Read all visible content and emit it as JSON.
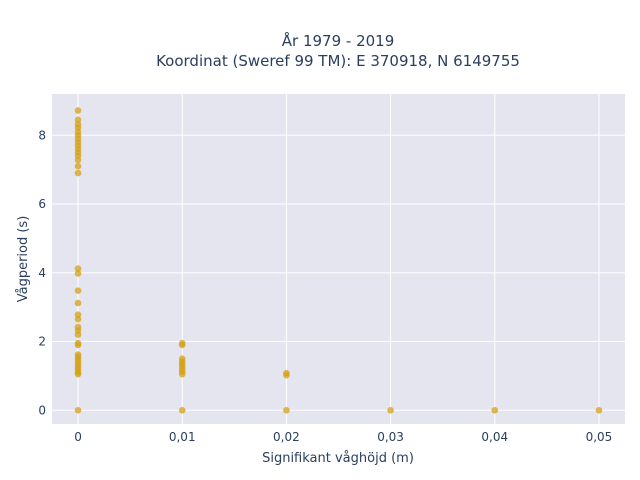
{
  "chart_data": {
    "type": "scatter",
    "title_line1": "År 1979 - 2019",
    "title_line2": "Koordinat (Sweref 99 TM): E 370918, N 6149755",
    "xlabel": "Signifikant våghöjd (m)",
    "ylabel": "Vågperiod (s)",
    "xlim": [
      -0.0025,
      0.0525
    ],
    "ylim": [
      -0.4,
      9.2
    ],
    "grid": true,
    "marker_color": "#d4a017",
    "background_color": "#e5e5f0",
    "x_ticks": [
      {
        "value": 0,
        "label": "0"
      },
      {
        "value": 0.01,
        "label": "0,01"
      },
      {
        "value": 0.02,
        "label": "0,02"
      },
      {
        "value": 0.03,
        "label": "0,03"
      },
      {
        "value": 0.04,
        "label": "0,04"
      },
      {
        "value": 0.05,
        "label": "0,05"
      }
    ],
    "y_ticks": [
      {
        "value": 0,
        "label": "0"
      },
      {
        "value": 2,
        "label": "2"
      },
      {
        "value": 4,
        "label": "4"
      },
      {
        "value": 6,
        "label": "6"
      },
      {
        "value": 8,
        "label": "8"
      }
    ],
    "points": [
      {
        "x": 0,
        "y": 8.72
      },
      {
        "x": 0,
        "y": 8.45
      },
      {
        "x": 0,
        "y": 8.32
      },
      {
        "x": 0,
        "y": 8.22
      },
      {
        "x": 0,
        "y": 8.1
      },
      {
        "x": 0,
        "y": 8.0
      },
      {
        "x": 0,
        "y": 7.9
      },
      {
        "x": 0,
        "y": 7.8
      },
      {
        "x": 0,
        "y": 7.7
      },
      {
        "x": 0,
        "y": 7.6
      },
      {
        "x": 0,
        "y": 7.5
      },
      {
        "x": 0,
        "y": 7.4
      },
      {
        "x": 0,
        "y": 7.28
      },
      {
        "x": 0,
        "y": 7.1
      },
      {
        "x": 0,
        "y": 6.9
      },
      {
        "x": 0,
        "y": 4.12
      },
      {
        "x": 0,
        "y": 3.98
      },
      {
        "x": 0,
        "y": 3.48
      },
      {
        "x": 0,
        "y": 3.12
      },
      {
        "x": 0,
        "y": 2.78
      },
      {
        "x": 0,
        "y": 2.65
      },
      {
        "x": 0,
        "y": 2.42
      },
      {
        "x": 0,
        "y": 2.32
      },
      {
        "x": 0,
        "y": 2.2
      },
      {
        "x": 0,
        "y": 1.95
      },
      {
        "x": 0,
        "y": 1.9
      },
      {
        "x": 0,
        "y": 1.62
      },
      {
        "x": 0,
        "y": 1.55
      },
      {
        "x": 0,
        "y": 1.48
      },
      {
        "x": 0,
        "y": 1.4
      },
      {
        "x": 0,
        "y": 1.32
      },
      {
        "x": 0,
        "y": 1.25
      },
      {
        "x": 0,
        "y": 1.18
      },
      {
        "x": 0,
        "y": 1.1
      },
      {
        "x": 0,
        "y": 1.05
      },
      {
        "x": 0,
        "y": 0
      },
      {
        "x": 0.01,
        "y": 1.95
      },
      {
        "x": 0.01,
        "y": 1.9
      },
      {
        "x": 0.01,
        "y": 1.5
      },
      {
        "x": 0.01,
        "y": 1.42
      },
      {
        "x": 0.01,
        "y": 1.35
      },
      {
        "x": 0.01,
        "y": 1.28
      },
      {
        "x": 0.01,
        "y": 1.2
      },
      {
        "x": 0.01,
        "y": 1.12
      },
      {
        "x": 0.01,
        "y": 1.05
      },
      {
        "x": 0.01,
        "y": 0
      },
      {
        "x": 0.02,
        "y": 1.08
      },
      {
        "x": 0.02,
        "y": 1.02
      },
      {
        "x": 0.02,
        "y": 0
      },
      {
        "x": 0.03,
        "y": 0
      },
      {
        "x": 0.04,
        "y": 0
      },
      {
        "x": 0.05,
        "y": 0
      }
    ]
  }
}
